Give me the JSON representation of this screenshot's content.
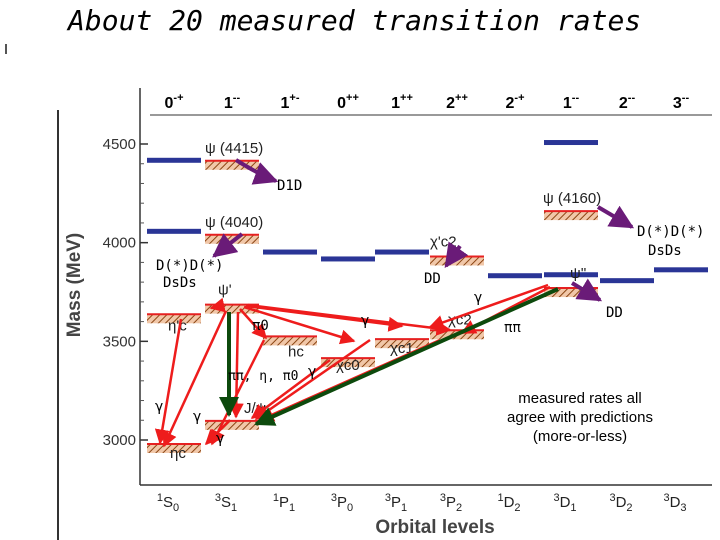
{
  "title": "About 20 measured transition rates",
  "chart_data": {
    "type": "level-diagram",
    "title": "About 20 measured transition rates",
    "xlabel": "Orbital levels",
    "ylabel": "Mass (MeV)",
    "ylim": [
      2850,
      4650
    ],
    "yticks": [
      3000,
      3500,
      4000,
      4500
    ],
    "jpc_labels": [
      "0-+",
      "1--",
      "1+-",
      "0++",
      "1++",
      "2++",
      "2-+",
      "1--",
      "2--",
      "3--"
    ],
    "orbital_labels": [
      {
        "main": "1",
        "sub": "S",
        "idx": "0"
      },
      {
        "main": "3",
        "sub": "S",
        "idx": "1"
      },
      {
        "main": "1",
        "sub": "P",
        "idx": "1"
      },
      {
        "main": "3",
        "sub": "P",
        "idx": "0"
      },
      {
        "main": "3",
        "sub": "P",
        "idx": "1"
      },
      {
        "main": "3",
        "sub": "P",
        "idx": "2"
      },
      {
        "main": "1",
        "sub": "D",
        "idx": "2"
      },
      {
        "main": "3",
        "sub": "D",
        "idx": "1"
      },
      {
        "main": "3",
        "sub": "D",
        "idx": "2"
      },
      {
        "main": "3",
        "sub": "D",
        "idx": "3"
      }
    ],
    "states": [
      {
        "name": "ψ(4415)",
        "label": "ψ (4415)",
        "col": 1,
        "mass": 4415,
        "observed": true
      },
      {
        "name": "ψ(4160)",
        "label": "ψ (4160)",
        "col": 7,
        "mass": 4160,
        "observed": true
      },
      {
        "name": "ψ(4040)",
        "label": "ψ (4040)",
        "col": 1,
        "mass": 4040,
        "observed": true
      },
      {
        "name": "χ'c2",
        "label": "χ'c2",
        "col": 5,
        "mass": 3930,
        "observed": true
      },
      {
        "name": "ψ''",
        "label": "ψ''",
        "col": 7,
        "mass": 3770,
        "observed": true
      },
      {
        "name": "ψ'",
        "label": "ψ'",
        "col": 1,
        "mass": 3686,
        "observed": true
      },
      {
        "name": "η'c",
        "label": "η'c",
        "col": 0,
        "mass": 3637,
        "observed": true
      },
      {
        "name": "hc",
        "label": "hc",
        "col": 2,
        "mass": 3525,
        "observed": true
      },
      {
        "name": "χc2",
        "label": "χc2",
        "col": 5,
        "mass": 3556,
        "observed": true
      },
      {
        "name": "χc1",
        "label": "χc1",
        "col": 4,
        "mass": 3511,
        "observed": true
      },
      {
        "name": "χc0",
        "label": "χc0",
        "col": 3,
        "mass": 3415,
        "observed": true
      },
      {
        "name": "J/ψ",
        "label": "J/ψ",
        "col": 1,
        "mass": 3097,
        "observed": true
      },
      {
        "name": "ηc",
        "label": "ηc",
        "col": 0,
        "mass": 2980,
        "observed": true
      },
      {
        "name": "pred-0-+-a",
        "col": 0,
        "mass": 4420,
        "observed": false
      },
      {
        "name": "pred-0-+-b",
        "col": 0,
        "mass": 4060,
        "observed": false
      },
      {
        "name": "pred-1+-",
        "col": 2,
        "mass": 3955,
        "observed": false
      },
      {
        "name": "pred-0++",
        "col": 3,
        "mass": 3920,
        "observed": false
      },
      {
        "name": "pred-1++",
        "col": 4,
        "mass": 3955,
        "observed": false
      },
      {
        "name": "pred-2-+",
        "col": 6,
        "mass": 3835,
        "observed": false
      },
      {
        "name": "pred-1---a",
        "col": 7,
        "mass": 4510,
        "observed": false
      },
      {
        "name": "pred-1---b",
        "col": 7,
        "mass": 3840,
        "observed": false
      },
      {
        "name": "pred-2--",
        "col": 8,
        "mass": 3810,
        "observed": false
      },
      {
        "name": "pred-3--",
        "col": 9,
        "mass": 3865,
        "observed": false
      }
    ],
    "transition_labels": {
      "d1d": "D1D",
      "dd_star_left_1": "D(*)D(*)",
      "dd_star_left_2": "DsDs",
      "dd_mid": "DD",
      "dd_star_right_1": "D(*)D(*)",
      "dd_star_right_2": "DsDs",
      "dd_right": "DD",
      "pi0": "π0",
      "pipi_eta_pi0": "ππ, η, π0",
      "pipi": "ππ",
      "gamma": "γ"
    },
    "note": [
      "measured rates all",
      "agree with predictions",
      "(more-or-less)"
    ]
  }
}
